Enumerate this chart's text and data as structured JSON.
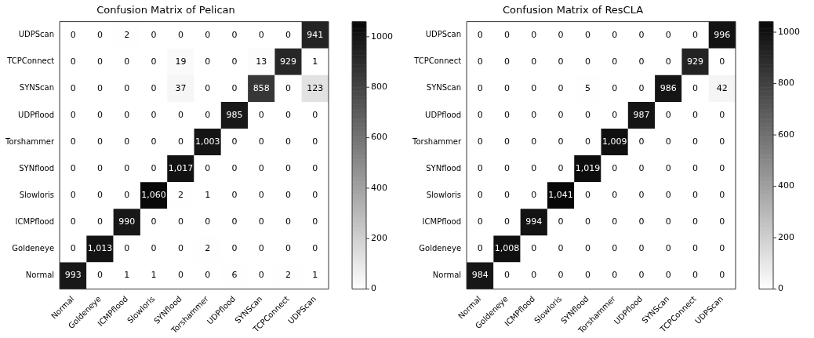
{
  "chart_data": [
    {
      "type": "heatmap",
      "title": "Confusion Matrix of Pelican",
      "categories": [
        "Normal",
        "Goldeneye",
        "ICMPflood",
        "Slowloris",
        "SYNflood",
        "Torshammer",
        "UDPflood",
        "SYNScan",
        "TCPConnect",
        "UDPScan"
      ],
      "y_categories": [
        "UDPScan",
        "TCPConnect",
        "SYNScan",
        "UDPflood",
        "Torshammer",
        "SYNflood",
        "Slowloris",
        "ICMPflood",
        "Goldeneye",
        "Normal"
      ],
      "cells": [
        [
          0,
          0,
          2,
          0,
          0,
          0,
          0,
          0,
          0,
          941
        ],
        [
          0,
          0,
          0,
          0,
          19,
          0,
          0,
          13,
          929,
          1
        ],
        [
          0,
          0,
          0,
          0,
          37,
          0,
          0,
          858,
          0,
          123
        ],
        [
          0,
          0,
          0,
          0,
          0,
          0,
          985,
          0,
          0,
          0
        ],
        [
          0,
          0,
          0,
          0,
          0,
          1003,
          0,
          0,
          0,
          0
        ],
        [
          0,
          0,
          0,
          0,
          1017,
          0,
          0,
          0,
          0,
          0
        ],
        [
          0,
          0,
          0,
          1060,
          2,
          1,
          0,
          0,
          0,
          0
        ],
        [
          0,
          0,
          990,
          0,
          0,
          0,
          0,
          0,
          0,
          0
        ],
        [
          0,
          1013,
          0,
          0,
          0,
          2,
          0,
          0,
          0,
          0
        ],
        [
          993,
          0,
          1,
          1,
          0,
          0,
          6,
          0,
          2,
          1
        ]
      ],
      "cell_labels": [
        [
          "0",
          "0",
          "2",
          "0",
          "0",
          "0",
          "0",
          "0",
          "0",
          "941"
        ],
        [
          "0",
          "0",
          "0",
          "0",
          "19",
          "0",
          "0",
          "13",
          "929",
          "1"
        ],
        [
          "0",
          "0",
          "0",
          "0",
          "37",
          "0",
          "0",
          "858",
          "0",
          "123"
        ],
        [
          "0",
          "0",
          "0",
          "0",
          "0",
          "0",
          "985",
          "0",
          "0",
          "0"
        ],
        [
          "0",
          "0",
          "0",
          "0",
          "0",
          "1,003",
          "0",
          "0",
          "0",
          "0"
        ],
        [
          "0",
          "0",
          "0",
          "0",
          "1,017",
          "0",
          "0",
          "0",
          "0",
          "0"
        ],
        [
          "0",
          "0",
          "0",
          "1,060",
          "2",
          "1",
          "0",
          "0",
          "0",
          "0"
        ],
        [
          "0",
          "0",
          "990",
          "0",
          "0",
          "0",
          "0",
          "0",
          "0",
          "0"
        ],
        [
          "0",
          "1,013",
          "0",
          "0",
          "0",
          "2",
          "0",
          "0",
          "0",
          "0"
        ],
        [
          "993",
          "0",
          "1",
          "1",
          "0",
          "0",
          "6",
          "0",
          "2",
          "1"
        ]
      ],
      "clim": [
        0,
        1060
      ],
      "cticks": [
        0,
        200,
        400,
        600,
        800,
        1000
      ]
    },
    {
      "type": "heatmap",
      "title": "Confusion Matrix of ResCLA",
      "categories": [
        "Normal",
        "Goldeneye",
        "ICMPflood",
        "Slowloris",
        "SYNflood",
        "Torshammer",
        "UDPflood",
        "SYNScan",
        "TCPConnect",
        "UDPScan"
      ],
      "y_categories": [
        "UDPScan",
        "TCPConnect",
        "SYNScan",
        "UDPflood",
        "Torshammer",
        "SYNflood",
        "Slowloris",
        "ICMPflood",
        "Goldeneye",
        "Normal"
      ],
      "cells": [
        [
          0,
          0,
          0,
          0,
          0,
          0,
          0,
          0,
          0,
          996
        ],
        [
          0,
          0,
          0,
          0,
          0,
          0,
          0,
          0,
          929,
          0
        ],
        [
          0,
          0,
          0,
          0,
          5,
          0,
          0,
          986,
          0,
          42
        ],
        [
          0,
          0,
          0,
          0,
          0,
          0,
          987,
          0,
          0,
          0
        ],
        [
          0,
          0,
          0,
          0,
          0,
          1009,
          0,
          0,
          0,
          0
        ],
        [
          0,
          0,
          0,
          0,
          1019,
          0,
          0,
          0,
          0,
          0
        ],
        [
          0,
          0,
          0,
          1041,
          0,
          0,
          0,
          0,
          0,
          0
        ],
        [
          0,
          0,
          994,
          0,
          0,
          0,
          0,
          0,
          0,
          0
        ],
        [
          0,
          1008,
          0,
          0,
          0,
          0,
          0,
          0,
          0,
          0
        ],
        [
          984,
          0,
          0,
          0,
          0,
          0,
          0,
          0,
          0,
          0
        ]
      ],
      "cell_labels": [
        [
          "0",
          "0",
          "0",
          "0",
          "0",
          "0",
          "0",
          "0",
          "0",
          "996"
        ],
        [
          "0",
          "0",
          "0",
          "0",
          "0",
          "0",
          "0",
          "0",
          "929",
          "0"
        ],
        [
          "0",
          "0",
          "0",
          "0",
          "5",
          "0",
          "0",
          "986",
          "0",
          "42"
        ],
        [
          "0",
          "0",
          "0",
          "0",
          "0",
          "0",
          "987",
          "0",
          "0",
          "0"
        ],
        [
          "0",
          "0",
          "0",
          "0",
          "0",
          "1,009",
          "0",
          "0",
          "0",
          "0"
        ],
        [
          "0",
          "0",
          "0",
          "0",
          "1,019",
          "0",
          "0",
          "0",
          "0",
          "0"
        ],
        [
          "0",
          "0",
          "0",
          "1,041",
          "0",
          "0",
          "0",
          "0",
          "0",
          "0"
        ],
        [
          "0",
          "0",
          "994",
          "0",
          "0",
          "0",
          "0",
          "0",
          "0",
          "0"
        ],
        [
          "0",
          "1,008",
          "0",
          "0",
          "0",
          "0",
          "0",
          "0",
          "0",
          "0"
        ],
        [
          "984",
          "0",
          "0",
          "0",
          "0",
          "0",
          "0",
          "0",
          "0",
          "0"
        ]
      ],
      "clim": [
        0,
        1041
      ],
      "cticks": [
        0,
        200,
        400,
        600,
        800,
        1000
      ]
    }
  ]
}
